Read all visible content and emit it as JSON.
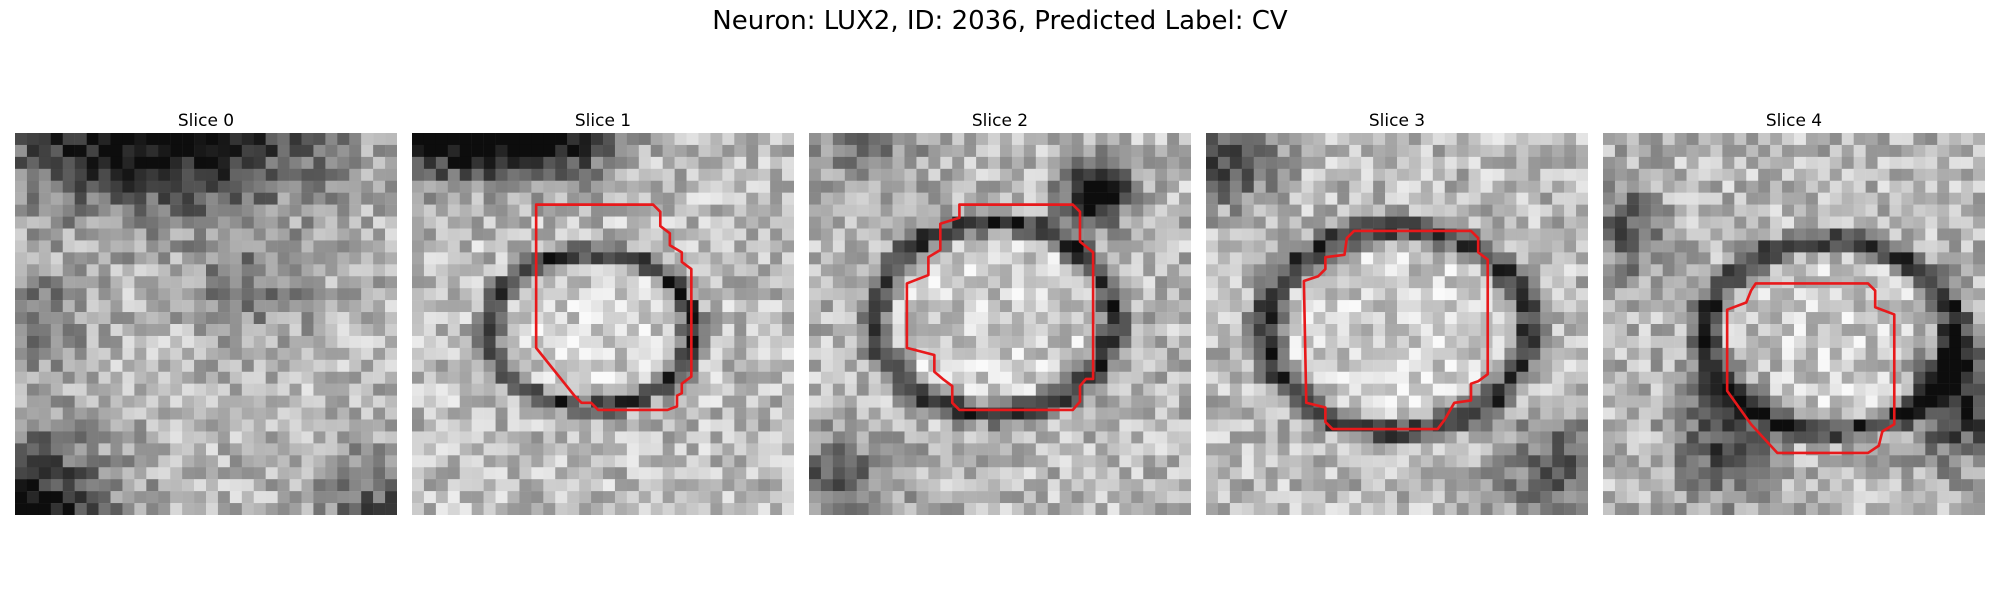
{
  "figure": {
    "title": "Neuron: LUX2, ID: 2036, Predicted Label: CV"
  },
  "colors": {
    "contour": "#e8191b"
  },
  "slices": [
    {
      "label": "Slice 0",
      "has_contour": false
    },
    {
      "label": "Slice 1",
      "has_contour": true
    },
    {
      "label": "Slice 2",
      "has_contour": true
    },
    {
      "label": "Slice 3",
      "has_contour": true
    },
    {
      "label": "Slice 4",
      "has_contour": true
    }
  ]
}
